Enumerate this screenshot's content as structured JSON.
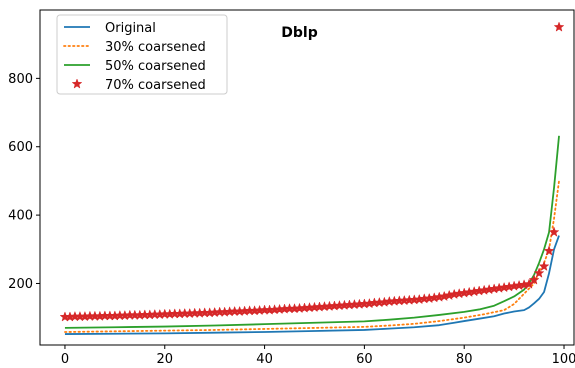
{
  "chart_data": {
    "type": "line",
    "title": "Dblp",
    "xlabel": "",
    "ylabel": "",
    "xlim": [
      -5,
      102
    ],
    "ylim": [
      20,
      1000
    ],
    "xticks": [
      0,
      20,
      40,
      60,
      80,
      100
    ],
    "yticks": [
      200,
      400,
      600,
      800
    ],
    "grid": false,
    "legend_placement": "top-left",
    "colors": {
      "original": "#1f77b4",
      "coarse30": "#ff7f0e",
      "coarse50": "#2ca02c",
      "coarse70": "#d62728"
    },
    "series": [
      {
        "name": "Original",
        "style": "solid",
        "points": [
          [
            0,
            52
          ],
          [
            10,
            53
          ],
          [
            20,
            54
          ],
          [
            30,
            56
          ],
          [
            40,
            58
          ],
          [
            50,
            61
          ],
          [
            60,
            64
          ],
          [
            65,
            68
          ],
          [
            70,
            72
          ],
          [
            75,
            78
          ],
          [
            78,
            85
          ],
          [
            80,
            90
          ],
          [
            83,
            97
          ],
          [
            86,
            104
          ],
          [
            88,
            112
          ],
          [
            90,
            118
          ],
          [
            92,
            122
          ],
          [
            93,
            130
          ],
          [
            94,
            142
          ],
          [
            95,
            155
          ],
          [
            96,
            175
          ],
          [
            97,
            230
          ],
          [
            98,
            300
          ],
          [
            99,
            340
          ]
        ]
      },
      {
        "name": "30% coarsened",
        "style": "dotted",
        "points": [
          [
            0,
            58
          ],
          [
            10,
            60
          ],
          [
            20,
            62
          ],
          [
            30,
            64
          ],
          [
            40,
            67
          ],
          [
            50,
            70
          ],
          [
            60,
            73
          ],
          [
            65,
            77
          ],
          [
            70,
            82
          ],
          [
            75,
            90
          ],
          [
            80,
            100
          ],
          [
            84,
            110
          ],
          [
            88,
            122
          ],
          [
            90,
            140
          ],
          [
            92,
            170
          ],
          [
            94,
            200
          ],
          [
            95,
            235
          ],
          [
            96,
            260
          ],
          [
            97,
            300
          ],
          [
            98,
            390
          ],
          [
            99,
            500
          ]
        ]
      },
      {
        "name": "50% coarsened",
        "style": "solid",
        "points": [
          [
            0,
            70
          ],
          [
            10,
            72
          ],
          [
            20,
            74
          ],
          [
            30,
            77
          ],
          [
            40,
            81
          ],
          [
            50,
            85
          ],
          [
            60,
            89
          ],
          [
            65,
            94
          ],
          [
            70,
            100
          ],
          [
            75,
            108
          ],
          [
            80,
            117
          ],
          [
            83,
            124
          ],
          [
            86,
            135
          ],
          [
            88,
            148
          ],
          [
            90,
            162
          ],
          [
            92,
            182
          ],
          [
            93,
            200
          ],
          [
            94,
            225
          ],
          [
            95,
            260
          ],
          [
            96,
            300
          ],
          [
            97,
            350
          ],
          [
            98,
            480
          ],
          [
            99,
            632
          ]
        ]
      },
      {
        "name": "70% coarsened",
        "style": "markers-star",
        "x": [
          0,
          1,
          2,
          3,
          4,
          5,
          6,
          7,
          8,
          9,
          10,
          11,
          12,
          13,
          14,
          15,
          16,
          17,
          18,
          19,
          20,
          21,
          22,
          23,
          24,
          25,
          26,
          27,
          28,
          29,
          30,
          31,
          32,
          33,
          34,
          35,
          36,
          37,
          38,
          39,
          40,
          41,
          42,
          43,
          44,
          45,
          46,
          47,
          48,
          49,
          50,
          51,
          52,
          53,
          54,
          55,
          56,
          57,
          58,
          59,
          60,
          61,
          62,
          63,
          64,
          65,
          66,
          67,
          68,
          69,
          70,
          71,
          72,
          73,
          74,
          75,
          76,
          77,
          78,
          79,
          80,
          81,
          82,
          83,
          84,
          85,
          86,
          87,
          88,
          89,
          90,
          91,
          92,
          93,
          94,
          95,
          96,
          97,
          98,
          99
        ],
        "values": [
          102,
          102,
          103,
          103,
          103,
          104,
          104,
          104,
          105,
          105,
          105,
          106,
          106,
          107,
          107,
          107,
          108,
          108,
          109,
          109,
          110,
          110,
          111,
          111,
          112,
          112,
          113,
          113,
          114,
          114,
          115,
          116,
          116,
          117,
          118,
          118,
          119,
          120,
          120,
          121,
          122,
          122,
          123,
          124,
          125,
          126,
          126,
          127,
          128,
          129,
          130,
          131,
          132,
          133,
          134,
          135,
          136,
          137,
          138,
          139,
          140,
          141,
          143,
          144,
          145,
          147,
          148,
          149,
          150,
          151,
          152,
          153,
          155,
          156,
          158,
          160,
          162,
          165,
          168,
          170,
          172,
          174,
          176,
          178,
          180,
          182,
          184,
          186,
          188,
          190,
          192,
          194,
          196,
          198,
          210,
          230,
          250,
          295,
          350,
          950
        ]
      }
    ]
  }
}
